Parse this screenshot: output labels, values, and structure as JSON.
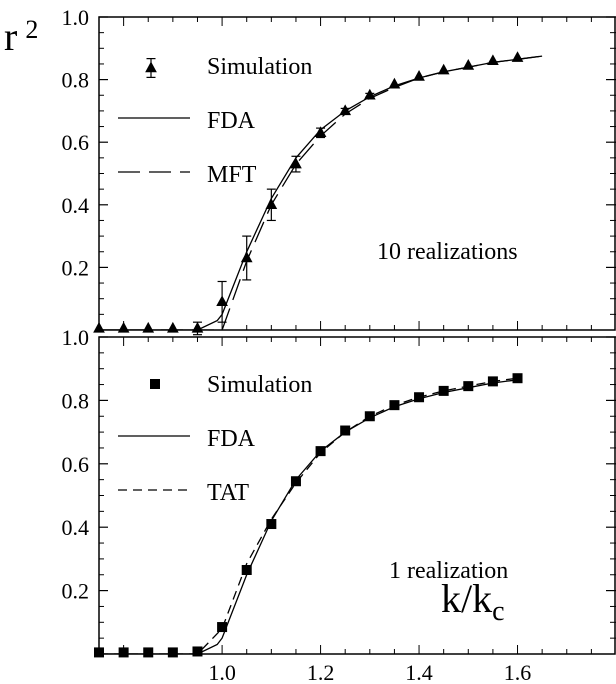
{
  "chart_data": [
    {
      "type": "line",
      "panel": "top",
      "ylabel_base": "r",
      "ylabel_sup": "2",
      "xlim": [
        0.75,
        1.8
      ],
      "ylim": [
        0,
        1.0
      ],
      "y_ticks": [
        0.2,
        0.4,
        0.6,
        0.8
      ],
      "y_tick_labels": [
        "0.2",
        "0.4",
        "0.6",
        "0.8"
      ],
      "y_top_label": "1.0",
      "grid": false,
      "legend_position": "top-left",
      "annotation": "10 realizations",
      "series": [
        {
          "name": "Simulation",
          "style": "triangle-errorbar",
          "x": [
            0.75,
            0.8,
            0.85,
            0.9,
            0.95,
            1.0,
            1.05,
            1.1,
            1.15,
            1.2,
            1.25,
            1.3,
            1.35,
            1.4,
            1.45,
            1.5,
            1.55,
            1.6
          ],
          "y": [
            0.005,
            0.005,
            0.005,
            0.005,
            0.005,
            0.09,
            0.23,
            0.4,
            0.53,
            0.63,
            0.7,
            0.75,
            0.785,
            0.81,
            0.83,
            0.845,
            0.86,
            0.87
          ],
          "err": [
            0,
            0,
            0,
            0,
            0.02,
            0.065,
            0.07,
            0.05,
            0.025,
            0.015,
            0.008,
            0.006,
            0.004,
            0.004,
            0.003,
            0.003,
            0.003,
            0.003
          ],
          "legend_err": 0.03
        },
        {
          "name": "FDA",
          "style": "solid",
          "x": [
            0.75,
            0.95,
            0.99,
            1.0,
            1.05,
            1.1,
            1.15,
            1.2,
            1.25,
            1.3,
            1.35,
            1.4,
            1.45,
            1.5,
            1.55,
            1.6,
            1.65
          ],
          "y": [
            0.0,
            0.0,
            0.03,
            0.05,
            0.25,
            0.42,
            0.55,
            0.64,
            0.7,
            0.745,
            0.78,
            0.805,
            0.825,
            0.84,
            0.855,
            0.865,
            0.875
          ]
        },
        {
          "name": "MFT",
          "style": "long-dash",
          "x": [
            0.75,
            0.99,
            1.0,
            1.05,
            1.1,
            1.15,
            1.2,
            1.25,
            1.3,
            1.35,
            1.4,
            1.45,
            1.5,
            1.55,
            1.6,
            1.65
          ],
          "y": [
            0.0,
            0.0,
            0.0,
            0.22,
            0.4,
            0.53,
            0.62,
            0.69,
            0.74,
            0.775,
            0.805,
            0.825,
            0.84,
            0.855,
            0.865,
            0.875
          ]
        }
      ]
    },
    {
      "type": "line",
      "panel": "bottom",
      "xlabel_base": "k/k",
      "xlabel_sub": "c",
      "xlim": [
        0.75,
        1.8
      ],
      "ylim": [
        0,
        1.0
      ],
      "x_ticks": [
        1.0,
        1.2,
        1.4,
        1.6
      ],
      "x_tick_labels": [
        "1.0",
        "1.2",
        "1.4",
        "1.6"
      ],
      "y_ticks": [
        0.2,
        0.4,
        0.6,
        0.8
      ],
      "y_tick_labels": [
        "0.2",
        "0.4",
        "0.6",
        "0.8"
      ],
      "y_top_label": "1.0",
      "grid": false,
      "legend_position": "top-left",
      "annotation": "1 realization",
      "series": [
        {
          "name": "Simulation",
          "style": "square",
          "x": [
            0.75,
            0.8,
            0.85,
            0.9,
            0.95,
            1.0,
            1.05,
            1.1,
            1.15,
            1.2,
            1.25,
            1.3,
            1.35,
            1.4,
            1.45,
            1.5,
            1.55,
            1.6
          ],
          "y": [
            0.005,
            0.005,
            0.005,
            0.005,
            0.008,
            0.085,
            0.265,
            0.41,
            0.545,
            0.64,
            0.705,
            0.75,
            0.785,
            0.81,
            0.83,
            0.845,
            0.86,
            0.87
          ]
        },
        {
          "name": "FDA",
          "style": "solid",
          "x": [
            0.75,
            0.95,
            0.99,
            1.0,
            1.05,
            1.1,
            1.15,
            1.2,
            1.25,
            1.3,
            1.35,
            1.4,
            1.45,
            1.5,
            1.55,
            1.6
          ],
          "y": [
            0.0,
            0.0,
            0.03,
            0.05,
            0.25,
            0.42,
            0.55,
            0.64,
            0.7,
            0.745,
            0.78,
            0.805,
            0.825,
            0.84,
            0.855,
            0.865
          ]
        },
        {
          "name": "TAT",
          "style": "short-dash",
          "x": [
            0.75,
            0.95,
            1.0,
            1.05,
            1.1,
            1.15,
            1.2,
            1.25,
            1.3,
            1.35,
            1.4,
            1.45,
            1.5,
            1.55,
            1.6
          ],
          "y": [
            0.0,
            0.0,
            0.08,
            0.285,
            0.425,
            0.54,
            0.635,
            0.7,
            0.75,
            0.785,
            0.81,
            0.83,
            0.845,
            0.86,
            0.87
          ]
        }
      ]
    }
  ]
}
